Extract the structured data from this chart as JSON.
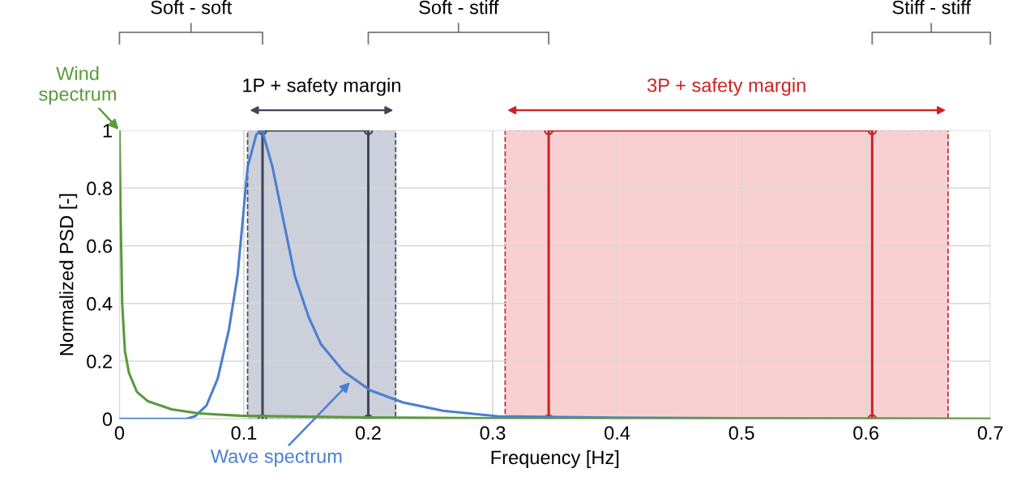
{
  "chart_data": {
    "type": "line",
    "xlabel": "Frequency [Hz]",
    "ylabel": "Normalized PSD [-]",
    "xlim": [
      0,
      0.7
    ],
    "xticks": [
      0,
      0.1,
      0.2,
      0.3,
      0.4,
      0.5,
      0.6,
      0.7
    ],
    "ylim": [
      0,
      1
    ],
    "yticks": [
      0,
      0.2,
      0.4,
      0.6,
      0.8,
      1
    ],
    "grid": true,
    "series": [
      {
        "color": "#5a9a3a",
        "marker": "none",
        "x": [
          0,
          0.001,
          0.0022,
          0.0044,
          0.0076,
          0.014,
          0.023,
          0.042,
          0.064,
          0.097,
          0.2,
          0.3,
          0.5,
          0.7
        ],
        "values": [
          1,
          0.685,
          0.4,
          0.235,
          0.16,
          0.094,
          0.061,
          0.033,
          0.019,
          0.011,
          0.005,
          0.002,
          0.001,
          0
        ]
      },
      {
        "color": "#4a7fd0",
        "marker": "none",
        "x": [
          0,
          0.054,
          0.061,
          0.07,
          0.079,
          0.088,
          0.095,
          0.099,
          0.103,
          0.11,
          0.1147,
          0.123,
          0.132,
          0.141,
          0.152,
          0.162,
          0.18,
          0.2016,
          0.228,
          0.26,
          0.304,
          0.4,
          0.5,
          0.7
        ],
        "values": [
          0,
          0,
          0.01,
          0.047,
          0.14,
          0.31,
          0.5,
          0.685,
          0.873,
          0.986,
          1,
          0.873,
          0.684,
          0.495,
          0.354,
          0.259,
          0.165,
          0.099,
          0.057,
          0.028,
          0.009,
          0.004,
          0.002,
          0
        ]
      },
      {
        "color": "#3d4658",
        "marker": "circle",
        "x": [
          0.115,
          0.115,
          0.2,
          0.2
        ],
        "values": [
          0,
          1,
          1,
          0
        ]
      },
      {
        "color": "#cc2222",
        "marker": "circle",
        "x": [
          0.345,
          0.345,
          0.605,
          0.605
        ],
        "values": [
          0,
          1,
          1,
          0
        ]
      }
    ],
    "bands": [
      {
        "axis": "x",
        "from": 0.103,
        "to": 0.222,
        "label": "1P + safety margin",
        "color": "#ccd0da"
      },
      {
        "axis": "x",
        "from": 0.31,
        "to": 0.666,
        "label": "3P + safety margin",
        "color": "#f9d0d2"
      }
    ],
    "annotations": [
      {
        "text": "Wind\nspectrum",
        "x": 0,
        "y": 1
      },
      {
        "text": "Wave spectrum",
        "x": 0.186,
        "y": 0.13
      },
      "Soft - soft",
      "Soft - stiff",
      "Stiff - stiff"
    ]
  }
}
